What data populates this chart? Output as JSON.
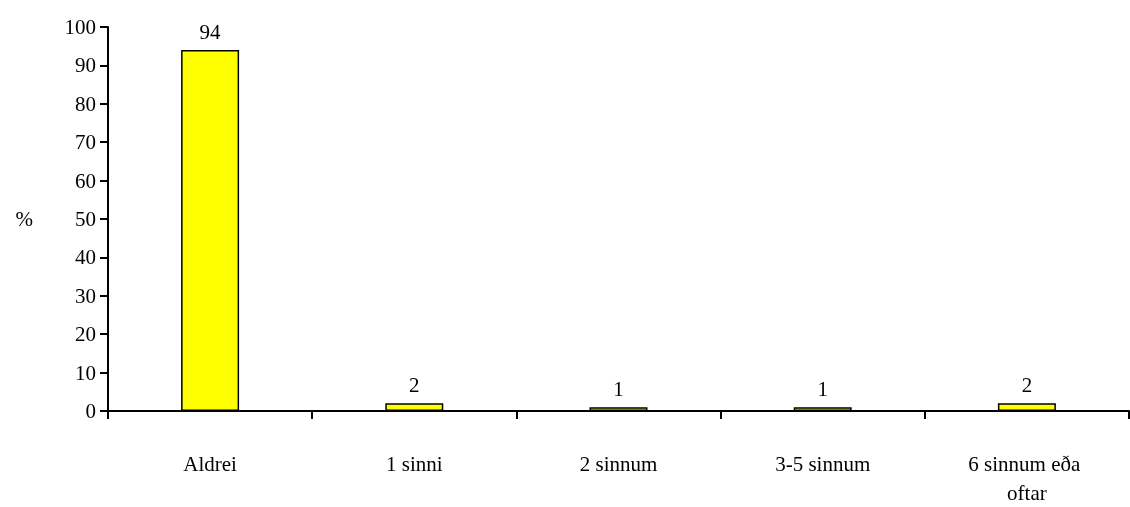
{
  "chart_data": {
    "type": "bar",
    "ylabel": "%",
    "categories": [
      "Aldrei",
      "1 sinni",
      "2 sinnum",
      "3-5 sinnum",
      "6 sinnum eða oftar"
    ],
    "values": [
      94,
      2,
      1,
      1,
      2
    ],
    "color": "#ffff00",
    "ylim": [
      0,
      100
    ],
    "yticks": [
      0,
      10,
      20,
      30,
      40,
      50,
      60,
      70,
      80,
      90,
      100
    ],
    "data_labels": true
  }
}
